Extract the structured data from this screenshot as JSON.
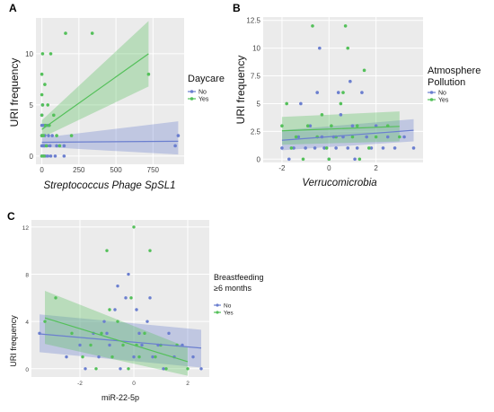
{
  "colors": {
    "no": "#6b7fcf",
    "yes": "#54c05a",
    "panel_bg": "#ebebeb",
    "grid": "#ffffff"
  },
  "panels": [
    {
      "letter": "A",
      "ylabel": "URI frequency",
      "xlabel": "Streptococcus Phage SpSL1",
      "legend_title": [
        "Daycare"
      ],
      "legend_items": [
        "No",
        "Yes"
      ]
    },
    {
      "letter": "B",
      "ylabel": "URI frequency",
      "xlabel": "Verrucomicrobia",
      "legend_title": [
        "Atmosphere",
        "Pollution"
      ],
      "legend_items": [
        "No",
        "Yes"
      ]
    },
    {
      "letter": "C",
      "ylabel": "URI frequency",
      "xlabel": "miR-22-5p",
      "legend_title": [
        "Breastfeeding",
        "≥6 months"
      ],
      "legend_items": [
        "No",
        "Yes"
      ]
    }
  ],
  "chart_data": [
    {
      "type": "scatter",
      "xlabel": "Streptococcus Phage SpSL1",
      "ylabel": "URI frequency",
      "legend_title": "Daycare",
      "xlim": [
        -40,
        960
      ],
      "ylim": [
        -0.8,
        13.5
      ],
      "x_ticks": [
        0,
        250,
        500,
        750
      ],
      "y_ticks": [
        0,
        5,
        10
      ],
      "series": [
        {
          "name": "No",
          "points": [
            [
              0,
              0
            ],
            [
              10,
              0
            ],
            [
              25,
              0
            ],
            [
              40,
              0
            ],
            [
              60,
              0
            ],
            [
              90,
              0
            ],
            [
              150,
              0
            ],
            [
              0,
              1
            ],
            [
              8,
              1
            ],
            [
              20,
              1
            ],
            [
              35,
              1
            ],
            [
              55,
              1
            ],
            [
              100,
              1
            ],
            [
              150,
              1
            ],
            [
              0,
              2
            ],
            [
              20,
              2
            ],
            [
              45,
              2
            ],
            [
              0,
              3
            ],
            [
              15,
              3
            ],
            [
              40,
              3
            ],
            [
              0,
              4
            ],
            [
              5,
              5
            ],
            [
              15,
              1
            ],
            [
              70,
              2
            ],
            [
              900,
              1
            ],
            [
              920,
              2
            ]
          ],
          "fit": {
            "x": [
              0,
              920
            ],
            "y": [
              1.35,
              1.45
            ]
          },
          "ci_lower": [
            0.9,
            0.15
          ],
          "ci_upper": [
            1.8,
            3.4
          ]
        },
        {
          "name": "Yes",
          "points": [
            [
              0,
              0
            ],
            [
              15,
              0
            ],
            [
              30,
              1
            ],
            [
              0,
              2
            ],
            [
              10,
              2
            ],
            [
              25,
              3
            ],
            [
              0,
              4
            ],
            [
              5,
              5
            ],
            [
              40,
              5
            ],
            [
              0,
              6
            ],
            [
              20,
              7
            ],
            [
              0,
              8
            ],
            [
              60,
              10
            ],
            [
              5,
              10
            ],
            [
              160,
              12
            ],
            [
              340,
              12
            ],
            [
              720,
              8
            ],
            [
              50,
              3
            ],
            [
              100,
              2
            ],
            [
              200,
              2
            ],
            [
              80,
              4
            ],
            [
              120,
              1
            ]
          ],
          "fit": {
            "x": [
              0,
              720
            ],
            "y": [
              2.6,
              10.0
            ]
          },
          "ci_lower": [
            1.8,
            6.8
          ],
          "ci_upper": [
            3.5,
            13.2
          ]
        }
      ]
    },
    {
      "type": "scatter",
      "xlabel": "Verrucomicrobia",
      "ylabel": "URI frequency",
      "legend_title": "Atmosphere Pollution",
      "xlim": [
        -2.8,
        4.0
      ],
      "ylim": [
        -0.3,
        12.8
      ],
      "x_ticks": [
        -2,
        0,
        2
      ],
      "y_ticks": [
        0,
        2.5,
        5,
        7.5,
        10,
        12.5
      ],
      "series": [
        {
          "name": "No",
          "points": [
            [
              -2.0,
              1
            ],
            [
              -1.7,
              0
            ],
            [
              -1.5,
              1
            ],
            [
              -1.3,
              2
            ],
            [
              -1.0,
              1
            ],
            [
              -0.8,
              3
            ],
            [
              -0.6,
              1
            ],
            [
              -0.5,
              6
            ],
            [
              -0.3,
              2
            ],
            [
              -0.2,
              1
            ],
            [
              0.0,
              0
            ],
            [
              0.2,
              2
            ],
            [
              0.3,
              1
            ],
            [
              0.5,
              4
            ],
            [
              0.6,
              2
            ],
            [
              0.8,
              1
            ],
            [
              1.0,
              3
            ],
            [
              1.2,
              1
            ],
            [
              1.4,
              6
            ],
            [
              1.6,
              2
            ],
            [
              1.8,
              1
            ],
            [
              2.0,
              3
            ],
            [
              2.3,
              1
            ],
            [
              2.5,
              2
            ],
            [
              2.8,
              1
            ],
            [
              3.2,
              2
            ],
            [
              3.6,
              1
            ],
            [
              -1.2,
              5
            ],
            [
              0.4,
              6
            ],
            [
              -0.4,
              10
            ],
            [
              1.1,
              0
            ],
            [
              0.9,
              7
            ]
          ],
          "fit": {
            "x": [
              -2.0,
              3.6
            ],
            "y": [
              1.7,
              2.6
            ]
          },
          "ci_lower": [
            0.8,
            1.6
          ],
          "ci_upper": [
            2.6,
            3.6
          ]
        },
        {
          "name": "Yes",
          "points": [
            [
              -2.0,
              3
            ],
            [
              -1.6,
              1
            ],
            [
              -1.4,
              2
            ],
            [
              -1.1,
              0
            ],
            [
              -0.9,
              3
            ],
            [
              -0.7,
              12
            ],
            [
              -0.5,
              2
            ],
            [
              -0.3,
              4
            ],
            [
              -0.1,
              1
            ],
            [
              0.1,
              3
            ],
            [
              0.3,
              2
            ],
            [
              0.5,
              5
            ],
            [
              0.7,
              12
            ],
            [
              0.8,
              10
            ],
            [
              1.0,
              2
            ],
            [
              1.2,
              3
            ],
            [
              1.5,
              8
            ],
            [
              1.7,
              1
            ],
            [
              2.0,
              2
            ],
            [
              2.5,
              3
            ],
            [
              3.0,
              2
            ],
            [
              -1.8,
              5
            ],
            [
              0.0,
              0
            ],
            [
              0.6,
              6
            ],
            [
              1.3,
              0
            ]
          ],
          "fit": {
            "x": [
              -2.0,
              3.0
            ],
            "y": [
              2.55,
              2.95
            ]
          },
          "ci_lower": [
            1.3,
            1.6
          ],
          "ci_upper": [
            3.8,
            4.3
          ]
        }
      ]
    },
    {
      "type": "scatter",
      "xlabel": "miR-22-5p",
      "ylabel": "URI frequency",
      "legend_title": "Breastfeeding ≥6 months",
      "xlim": [
        -3.8,
        2.8
      ],
      "ylim": [
        -0.7,
        12.6
      ],
      "x_ticks": [
        -2,
        0,
        2
      ],
      "y_ticks": [
        0,
        4,
        8,
        12
      ],
      "series": [
        {
          "name": "No",
          "points": [
            [
              -3.5,
              3
            ],
            [
              -2.5,
              1
            ],
            [
              -2.0,
              2
            ],
            [
              -1.8,
              0
            ],
            [
              -1.5,
              3
            ],
            [
              -1.3,
              1
            ],
            [
              -1.1,
              4
            ],
            [
              -0.9,
              2
            ],
            [
              -0.7,
              5
            ],
            [
              -0.5,
              0
            ],
            [
              -0.3,
              6
            ],
            [
              -0.2,
              8
            ],
            [
              0.0,
              1
            ],
            [
              0.2,
              3
            ],
            [
              0.3,
              2
            ],
            [
              0.5,
              4
            ],
            [
              0.7,
              1
            ],
            [
              0.9,
              2
            ],
            [
              1.1,
              0
            ],
            [
              1.3,
              3
            ],
            [
              1.5,
              1
            ],
            [
              1.8,
              2
            ],
            [
              2.2,
              1
            ],
            [
              2.5,
              0
            ],
            [
              -0.6,
              7
            ],
            [
              0.1,
              5
            ],
            [
              -1.0,
              3
            ],
            [
              0.6,
              6
            ]
          ],
          "fit": {
            "x": [
              -3.5,
              2.5
            ],
            "y": [
              2.95,
              1.75
            ]
          },
          "ci_lower": [
            1.4,
            0.1
          ],
          "ci_upper": [
            4.6,
            3.3
          ]
        },
        {
          "name": "Yes",
          "points": [
            [
              -3.3,
              4
            ],
            [
              -2.9,
              6
            ],
            [
              -2.3,
              3
            ],
            [
              -1.9,
              1
            ],
            [
              -1.6,
              2
            ],
            [
              -1.4,
              0
            ],
            [
              -1.2,
              3
            ],
            [
              -1.0,
              10
            ],
            [
              -0.8,
              1
            ],
            [
              -0.6,
              4
            ],
            [
              -0.4,
              2
            ],
            [
              -0.2,
              0
            ],
            [
              0.0,
              12
            ],
            [
              0.2,
              1
            ],
            [
              0.4,
              3
            ],
            [
              0.6,
              10
            ],
            [
              0.8,
              1
            ],
            [
              1.0,
              2
            ],
            [
              1.2,
              0
            ],
            [
              1.6,
              2
            ],
            [
              2.0,
              0
            ],
            [
              -0.9,
              5
            ],
            [
              0.1,
              2
            ],
            [
              -0.1,
              6
            ]
          ],
          "fit": {
            "x": [
              -3.3,
              2.0
            ],
            "y": [
              4.3,
              0.6
            ]
          },
          "ci_lower": [
            2.1,
            -0.6
          ],
          "ci_upper": [
            6.6,
            1.8
          ]
        }
      ]
    }
  ]
}
